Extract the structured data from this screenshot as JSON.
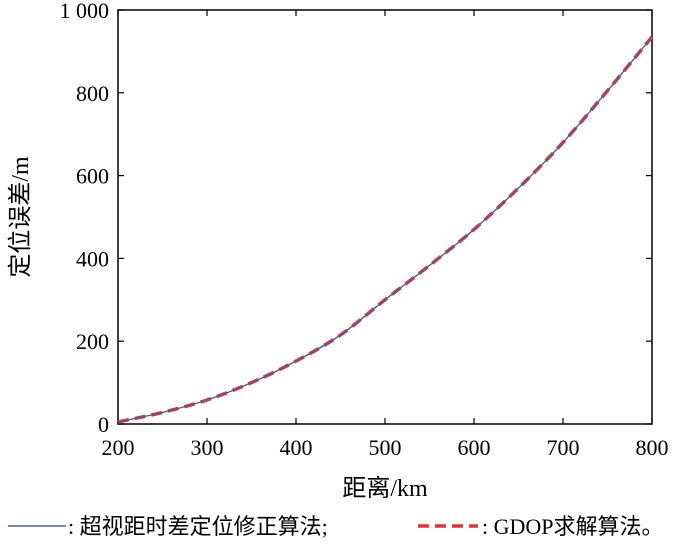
{
  "chart_data": {
    "type": "line",
    "xlabel": "距离/km",
    "ylabel": "定位误差/m",
    "xlim": [
      200,
      800
    ],
    "ylim": [
      0,
      1000
    ],
    "x_ticks": [
      200,
      300,
      400,
      500,
      600,
      700,
      800
    ],
    "x_tick_labels": [
      "200",
      "300",
      "400",
      "500",
      "600",
      "700",
      "800"
    ],
    "y_ticks": [
      0,
      200,
      400,
      600,
      800,
      1000
    ],
    "y_tick_labels": [
      "0",
      "200",
      "400",
      "600",
      "800",
      "1 000"
    ],
    "grid": false,
    "legend_position": "bottom",
    "x": [
      200,
      250,
      300,
      350,
      400,
      450,
      500,
      550,
      600,
      650,
      700,
      750,
      800
    ],
    "series": [
      {
        "name": ": 超视距时差定位修正算法;",
        "style": "solid",
        "color": "#4a5fa8",
        "values": [
          5,
          28,
          58,
          100,
          152,
          215,
          300,
          383,
          470,
          570,
          680,
          805,
          935
        ]
      },
      {
        "name": ": GDOP求解算法。",
        "style": "dashed",
        "color": "#e8332a",
        "values": [
          5,
          28,
          58,
          100,
          152,
          215,
          300,
          383,
          470,
          570,
          680,
          805,
          935
        ]
      }
    ]
  }
}
